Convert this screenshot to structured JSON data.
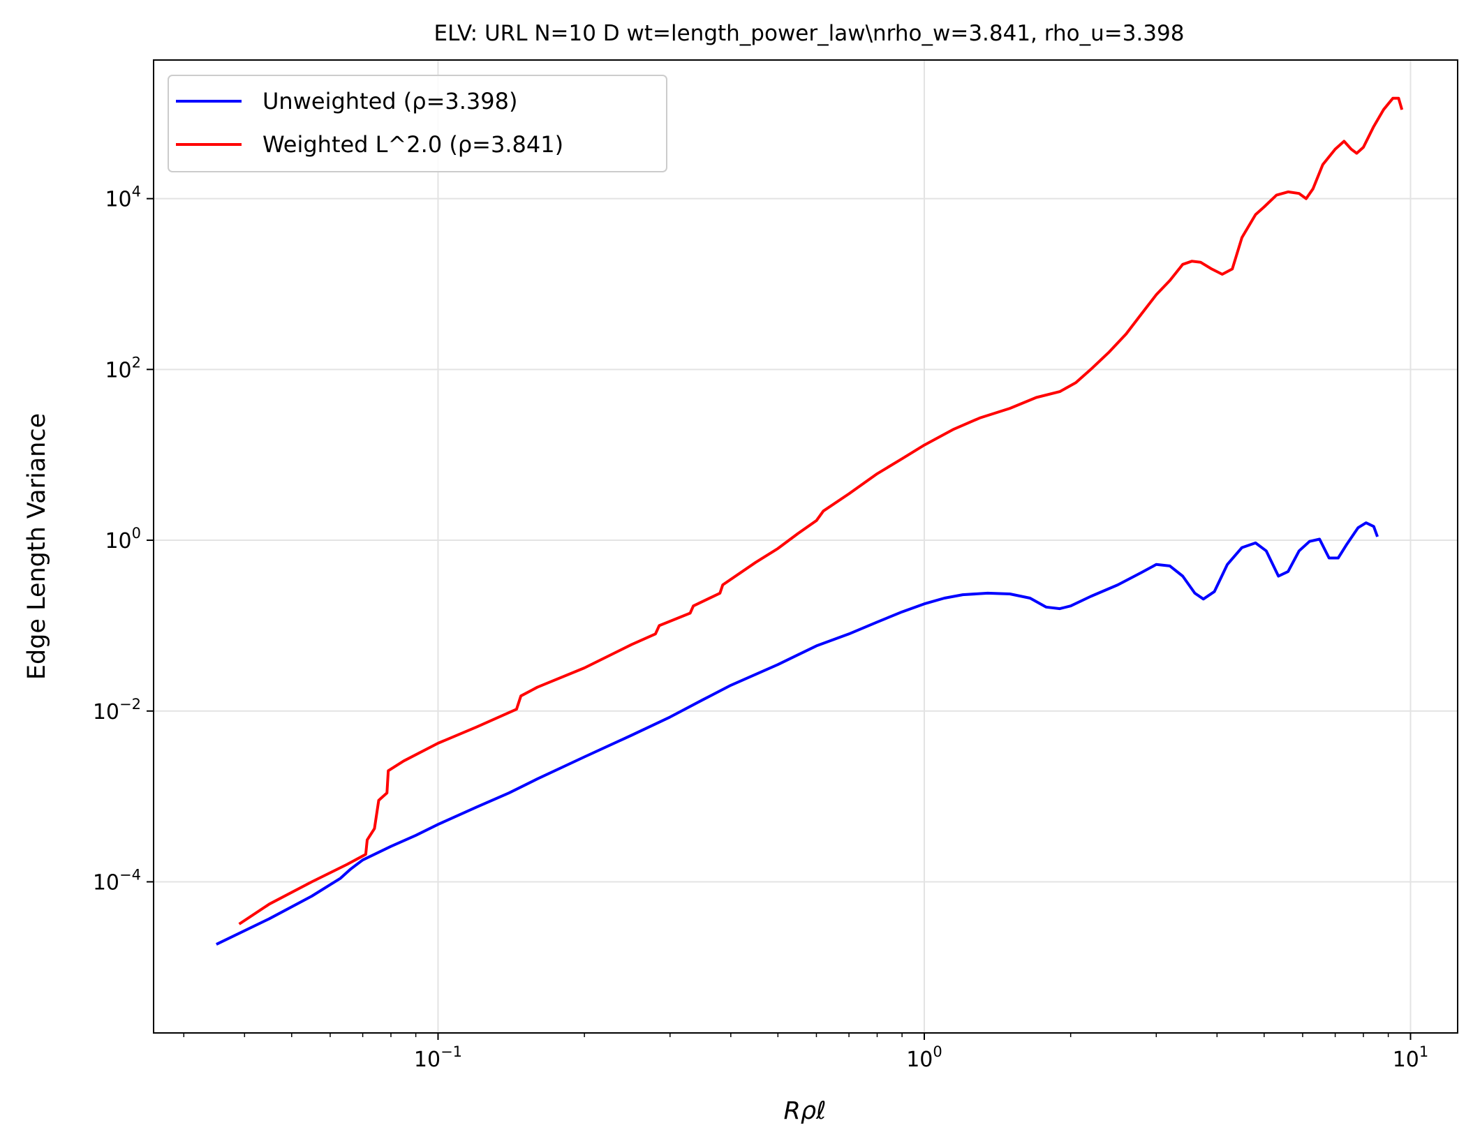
{
  "chart_data": {
    "type": "line",
    "title": "ELV: URL N=10 D wt=length_power_law\\nrho_w=3.841, rho_u=3.398",
    "xlabel": "Rρℓ",
    "ylabel": "Edge Length Variance",
    "xscale": "log",
    "yscale": "log",
    "xlim": [
      0.026,
      12.5
    ],
    "ylim": [
      1.7e-06,
      420000
    ],
    "grid": true,
    "legend_position": "top-left",
    "x_ticks": [
      {
        "value": 0.1,
        "base": "10",
        "exp": "−1"
      },
      {
        "value": 1,
        "base": "10",
        "exp": "0"
      },
      {
        "value": 10,
        "base": "10",
        "exp": "1"
      }
    ],
    "y_ticks": [
      {
        "value": 0.0001,
        "base": "10",
        "exp": "−4"
      },
      {
        "value": 0.01,
        "base": "10",
        "exp": "−2"
      },
      {
        "value": 1,
        "base": "10",
        "exp": "0"
      },
      {
        "value": 100,
        "base": "10",
        "exp": "2"
      },
      {
        "value": 10000,
        "base": "10",
        "exp": "4"
      }
    ],
    "series": [
      {
        "name": "Unweighted (ρ=3.398)",
        "color": "#0000ff",
        "points": [
          [
            0.035,
            1.85e-05
          ],
          [
            0.045,
            3.7e-05
          ],
          [
            0.055,
            6.8e-05
          ],
          [
            0.063,
            0.00011
          ],
          [
            0.066,
            0.00014
          ],
          [
            0.07,
            0.00018
          ],
          [
            0.08,
            0.00026
          ],
          [
            0.09,
            0.00035
          ],
          [
            0.1,
            0.00047
          ],
          [
            0.12,
            0.00075
          ],
          [
            0.14,
            0.0011
          ],
          [
            0.16,
            0.0016
          ],
          [
            0.2,
            0.0029
          ],
          [
            0.25,
            0.0052
          ],
          [
            0.3,
            0.0085
          ],
          [
            0.35,
            0.0135
          ],
          [
            0.4,
            0.02
          ],
          [
            0.5,
            0.035
          ],
          [
            0.6,
            0.058
          ],
          [
            0.7,
            0.08
          ],
          [
            0.8,
            0.11
          ],
          [
            0.9,
            0.145
          ],
          [
            1.0,
            0.18
          ],
          [
            1.1,
            0.21
          ],
          [
            1.2,
            0.23
          ],
          [
            1.35,
            0.24
          ],
          [
            1.5,
            0.235
          ],
          [
            1.65,
            0.21
          ],
          [
            1.78,
            0.165
          ],
          [
            1.9,
            0.158
          ],
          [
            2.0,
            0.17
          ],
          [
            2.2,
            0.22
          ],
          [
            2.5,
            0.3
          ],
          [
            2.8,
            0.42
          ],
          [
            3.0,
            0.52
          ],
          [
            3.2,
            0.5
          ],
          [
            3.4,
            0.38
          ],
          [
            3.6,
            0.24
          ],
          [
            3.75,
            0.205
          ],
          [
            3.95,
            0.25
          ],
          [
            4.2,
            0.52
          ],
          [
            4.5,
            0.82
          ],
          [
            4.8,
            0.93
          ],
          [
            5.05,
            0.75
          ],
          [
            5.35,
            0.38
          ],
          [
            5.6,
            0.43
          ],
          [
            5.9,
            0.75
          ],
          [
            6.2,
            0.97
          ],
          [
            6.5,
            1.03
          ],
          [
            6.8,
            0.62
          ],
          [
            7.1,
            0.62
          ],
          [
            7.4,
            0.9
          ],
          [
            7.8,
            1.4
          ],
          [
            8.1,
            1.6
          ],
          [
            8.4,
            1.45
          ],
          [
            8.55,
            1.1
          ]
        ]
      },
      {
        "name": "Weighted L^2.0 (ρ=3.841)",
        "color": "#ff0000",
        "points": [
          [
            0.039,
            3.2e-05
          ],
          [
            0.045,
            5.5e-05
          ],
          [
            0.055,
            0.0001
          ],
          [
            0.065,
            0.00016
          ],
          [
            0.071,
            0.00021
          ],
          [
            0.0715,
            0.00031
          ],
          [
            0.074,
            0.00042
          ],
          [
            0.0755,
            0.0009
          ],
          [
            0.0785,
            0.0011
          ],
          [
            0.079,
            0.002
          ],
          [
            0.085,
            0.0026
          ],
          [
            0.1,
            0.0042
          ],
          [
            0.12,
            0.0065
          ],
          [
            0.145,
            0.0105
          ],
          [
            0.148,
            0.015
          ],
          [
            0.16,
            0.019
          ],
          [
            0.2,
            0.032
          ],
          [
            0.25,
            0.06
          ],
          [
            0.28,
            0.08
          ],
          [
            0.285,
            0.1
          ],
          [
            0.33,
            0.14
          ],
          [
            0.335,
            0.17
          ],
          [
            0.38,
            0.24
          ],
          [
            0.385,
            0.3
          ],
          [
            0.45,
            0.55
          ],
          [
            0.5,
            0.8
          ],
          [
            0.55,
            1.2
          ],
          [
            0.6,
            1.7
          ],
          [
            0.62,
            2.2
          ],
          [
            0.7,
            3.5
          ],
          [
            0.8,
            6.0
          ],
          [
            0.9,
            9.0
          ],
          [
            1.0,
            13.0
          ],
          [
            1.15,
            20.0
          ],
          [
            1.3,
            27.0
          ],
          [
            1.5,
            35.0
          ],
          [
            1.7,
            47.0
          ],
          [
            1.9,
            55.0
          ],
          [
            2.05,
            70.0
          ],
          [
            2.2,
            100.0
          ],
          [
            2.4,
            160.0
          ],
          [
            2.6,
            260.0
          ],
          [
            2.8,
            450.0
          ],
          [
            3.0,
            750.0
          ],
          [
            3.2,
            1100.0
          ],
          [
            3.4,
            1700.0
          ],
          [
            3.55,
            1850.0
          ],
          [
            3.7,
            1800.0
          ],
          [
            3.9,
            1500.0
          ],
          [
            4.1,
            1300.0
          ],
          [
            4.3,
            1500.0
          ],
          [
            4.5,
            3500.0
          ],
          [
            4.8,
            6500.0
          ],
          [
            5.0,
            8000.0
          ],
          [
            5.3,
            11000.0
          ],
          [
            5.6,
            12000.0
          ],
          [
            5.9,
            11500.0
          ],
          [
            6.1,
            10000.0
          ],
          [
            6.3,
            13000.0
          ],
          [
            6.6,
            25000.0
          ],
          [
            7.0,
            38000.0
          ],
          [
            7.3,
            47000.0
          ],
          [
            7.55,
            38000.0
          ],
          [
            7.75,
            34000.0
          ],
          [
            8.0,
            40000.0
          ],
          [
            8.4,
            70000.0
          ],
          [
            8.8,
            110000.0
          ],
          [
            9.2,
            150000.0
          ],
          [
            9.45,
            150000.0
          ],
          [
            9.6,
            110000.0
          ]
        ]
      }
    ]
  }
}
